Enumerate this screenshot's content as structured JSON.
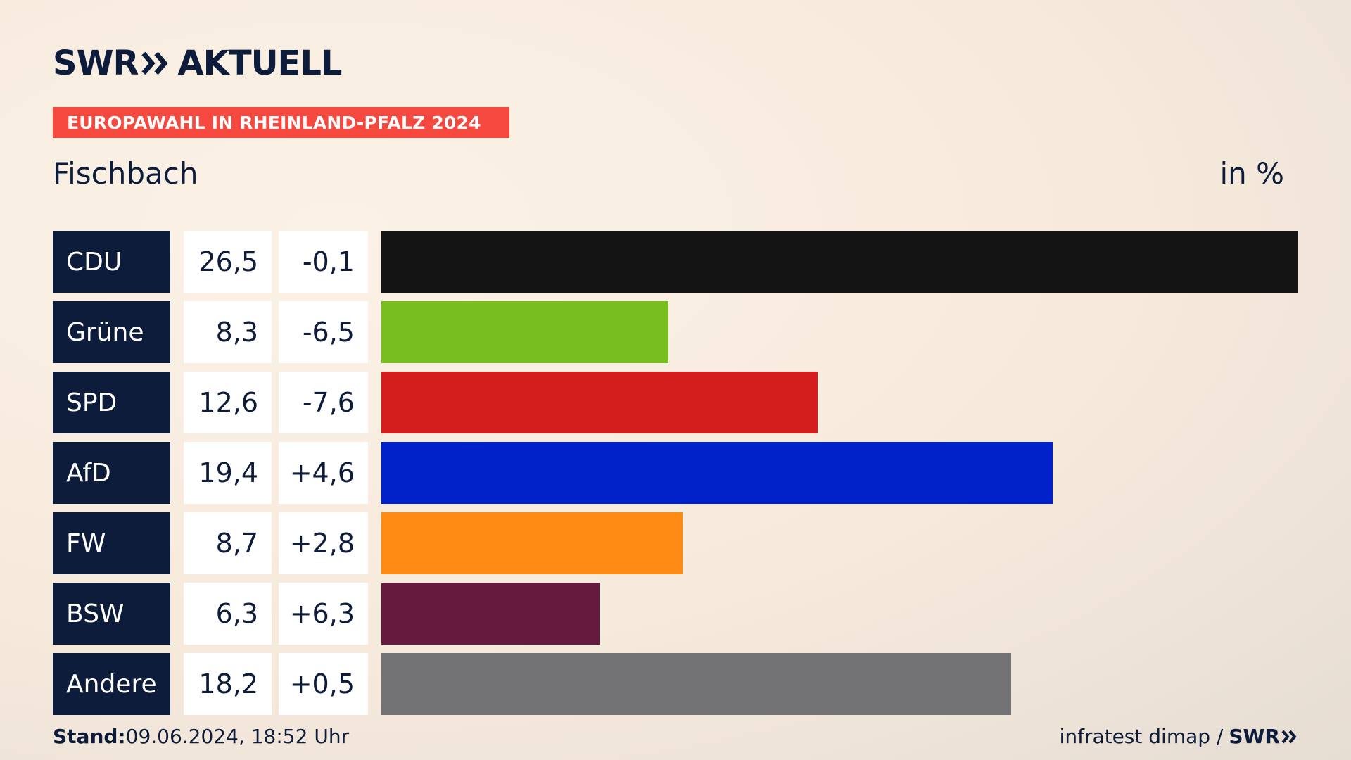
{
  "brand": {
    "name_left": "SWR",
    "name_right": "AKTUELL",
    "color": "#0c1c3a"
  },
  "banner": {
    "text": "EUROPAWAHL IN RHEINLAND-PFALZ 2024",
    "color": "#f5493f"
  },
  "region": "Fischbach",
  "unit": "in %",
  "chart_data": {
    "type": "bar",
    "orientation": "horizontal",
    "categories": [
      "CDU",
      "Grüne",
      "SPD",
      "AfD",
      "FW",
      "BSW",
      "Andere"
    ],
    "values": [
      26.5,
      8.3,
      12.6,
      19.4,
      8.7,
      6.3,
      18.2
    ],
    "value_labels": [
      "26,5",
      "8,3",
      "12,6",
      "19,4",
      "8,7",
      "6,3",
      "18,2"
    ],
    "diff_labels": [
      "-0,1",
      "-6,5",
      "-7,6",
      "+4,6",
      "+2,8",
      "+6,3",
      "+0,5"
    ],
    "colors": [
      "#141414",
      "#78be1e",
      "#d41e1e",
      "#0020c8",
      "#ff8a14",
      "#661a3e",
      "#727274"
    ],
    "xlim": [
      0,
      26.5
    ],
    "grid": false,
    "legend": "none"
  },
  "footer": {
    "stand_label": "Stand:",
    "stand_value": "09.06.2024, 18:52 Uhr",
    "source": "infratest dimap /",
    "source_brand": "SWR"
  }
}
